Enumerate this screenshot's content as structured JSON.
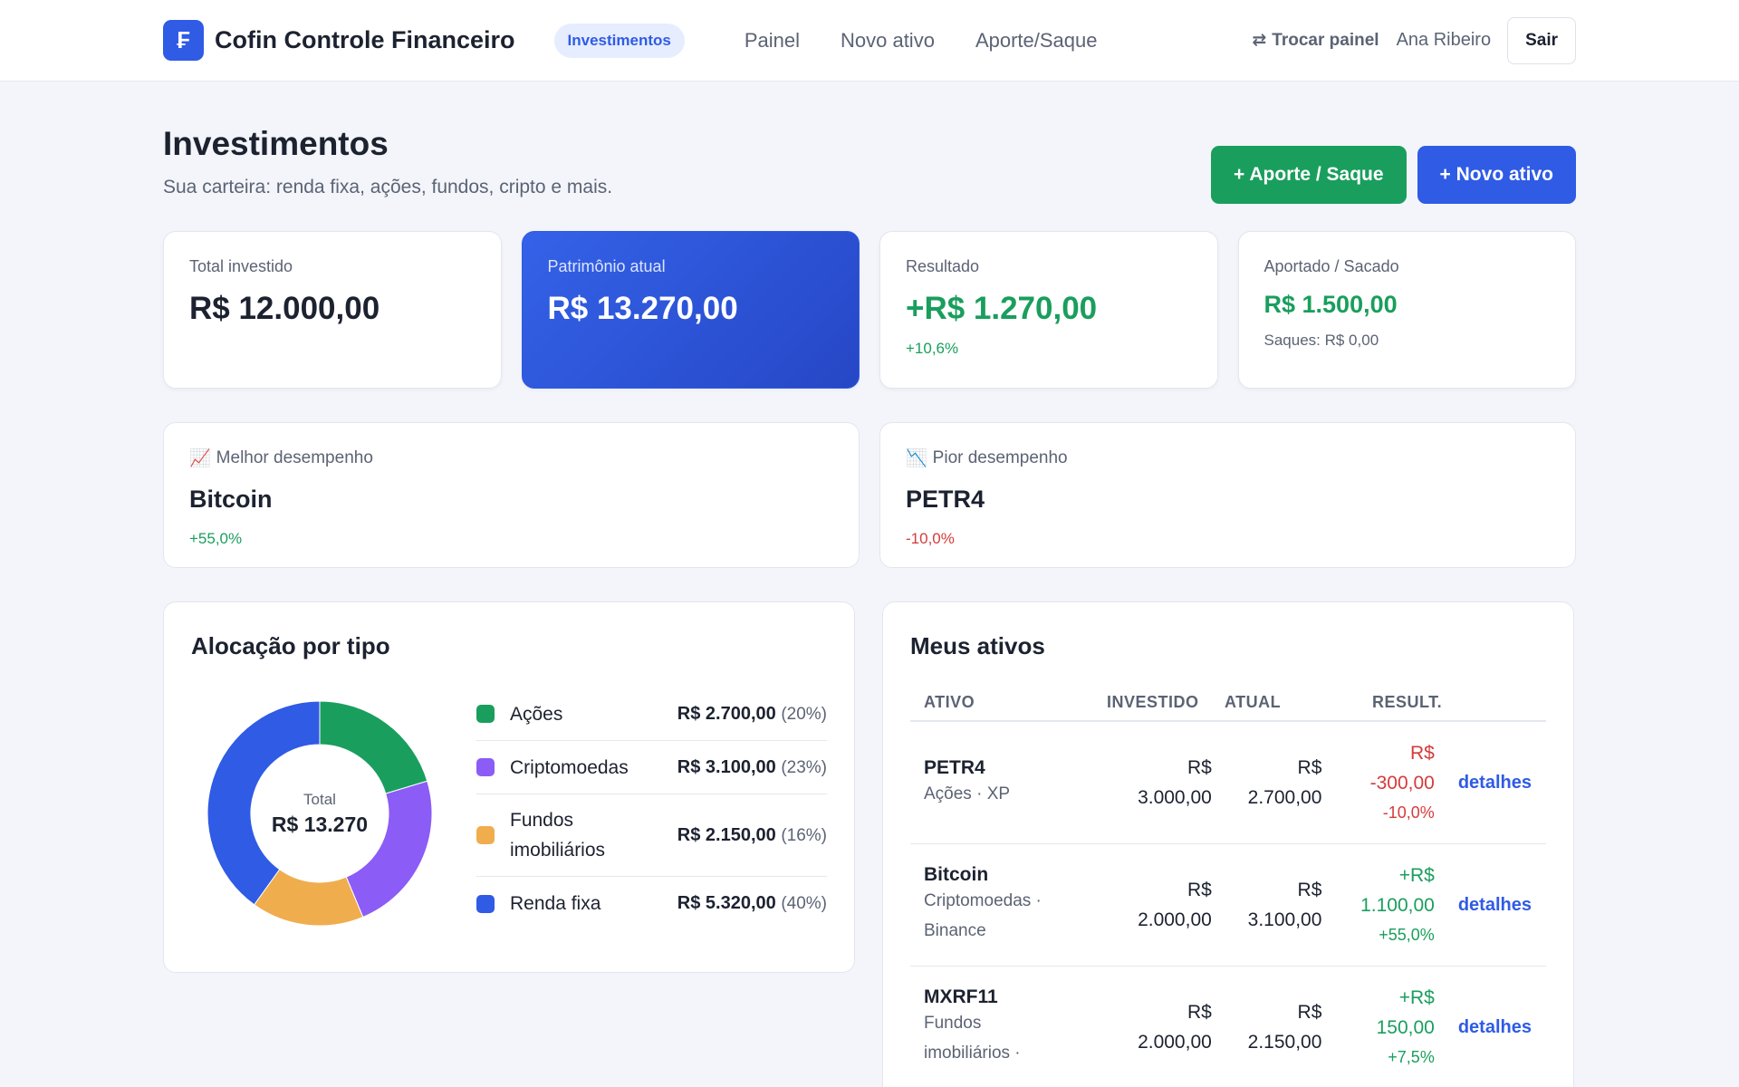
{
  "header": {
    "logo_glyph": "₣",
    "app_name": "Cofin Controle Financeiro",
    "section_pill": "Investimentos",
    "nav": [
      "Painel",
      "Novo ativo",
      "Aporte/Saque"
    ],
    "switch_icon": "swap-arrows-icon",
    "switch_glyph": "⇄",
    "switch_label": "Trocar painel",
    "user_name": "Ana Ribeiro",
    "logout_label": "Sair"
  },
  "page": {
    "title": "Investimentos",
    "subtitle": "Sua carteira: renda fixa, ações, fundos, cripto e mais.",
    "btn_aporte": "+ Aporte / Saque",
    "btn_novo": "+ Novo ativo"
  },
  "kpis": {
    "total": {
      "label": "Total investido",
      "value": "R$ 12.000,00"
    },
    "patrimonio": {
      "label": "Patrimônio atual",
      "value": "R$ 13.270,00"
    },
    "resultado": {
      "label": "Resultado",
      "value": "+R$ 1.270,00",
      "sub": "+10,6%"
    },
    "aportado": {
      "label": "Aportado / Sacado",
      "value": "R$ 1.500,00",
      "sub": "Saques: R$ 0,00"
    }
  },
  "performance": {
    "best": {
      "icon": "chart-up-icon",
      "glyph": "📈",
      "label": "Melhor desempenho",
      "name": "Bitcoin",
      "pct": "+55,0%"
    },
    "worst": {
      "icon": "chart-down-icon",
      "glyph": "📉",
      "label": "Pior desempenho",
      "name": "PETR4",
      "pct": "-10,0%"
    }
  },
  "allocation": {
    "title": "Alocação por tipo",
    "center_label": "Total",
    "center_value": "R$ 13.270",
    "items": [
      {
        "name": "Ações",
        "value": "R$ 2.700,00",
        "pct": "(20%)",
        "amount": 2700,
        "color": "#1a9e5d"
      },
      {
        "name": "Criptomoedas",
        "value": "R$ 3.100,00",
        "pct": "(23%)",
        "amount": 3100,
        "color": "#8b5cf6"
      },
      {
        "name": "Fundos imobiliários",
        "value": "R$ 2.150,00",
        "pct": "(16%)",
        "amount": 2150,
        "color": "#f0ad4e"
      },
      {
        "name": "Renda fixa",
        "value": "R$ 5.320,00",
        "pct": "(40%)",
        "amount": 5320,
        "color": "#2f5be5"
      }
    ]
  },
  "assets": {
    "title": "Meus ativos",
    "columns": [
      "ATIVO",
      "INVESTIDO",
      "ATUAL",
      "RESULT."
    ],
    "details_label": "detalhes",
    "rows": [
      {
        "name": "PETR4",
        "meta": "Ações · XP",
        "invested": [
          "R$",
          "3.000,00"
        ],
        "current": [
          "R$",
          "2.700,00"
        ],
        "result": [
          "R$",
          "-300,00"
        ],
        "pct": "-10,0%",
        "positive": false
      },
      {
        "name": "Bitcoin",
        "meta": "Criptomoedas · Binance",
        "invested": [
          "R$",
          "2.000,00"
        ],
        "current": [
          "R$",
          "3.100,00"
        ],
        "result": [
          "+R$",
          "1.100,00"
        ],
        "pct": "+55,0%",
        "positive": true
      },
      {
        "name": "MXRF11",
        "meta": "Fundos imobiliários ·",
        "invested": [
          "R$",
          "2.000,00"
        ],
        "current": [
          "R$",
          "2.150,00"
        ],
        "result": [
          "+R$",
          "150,00"
        ],
        "pct": "+7,5%",
        "positive": true
      }
    ]
  }
}
